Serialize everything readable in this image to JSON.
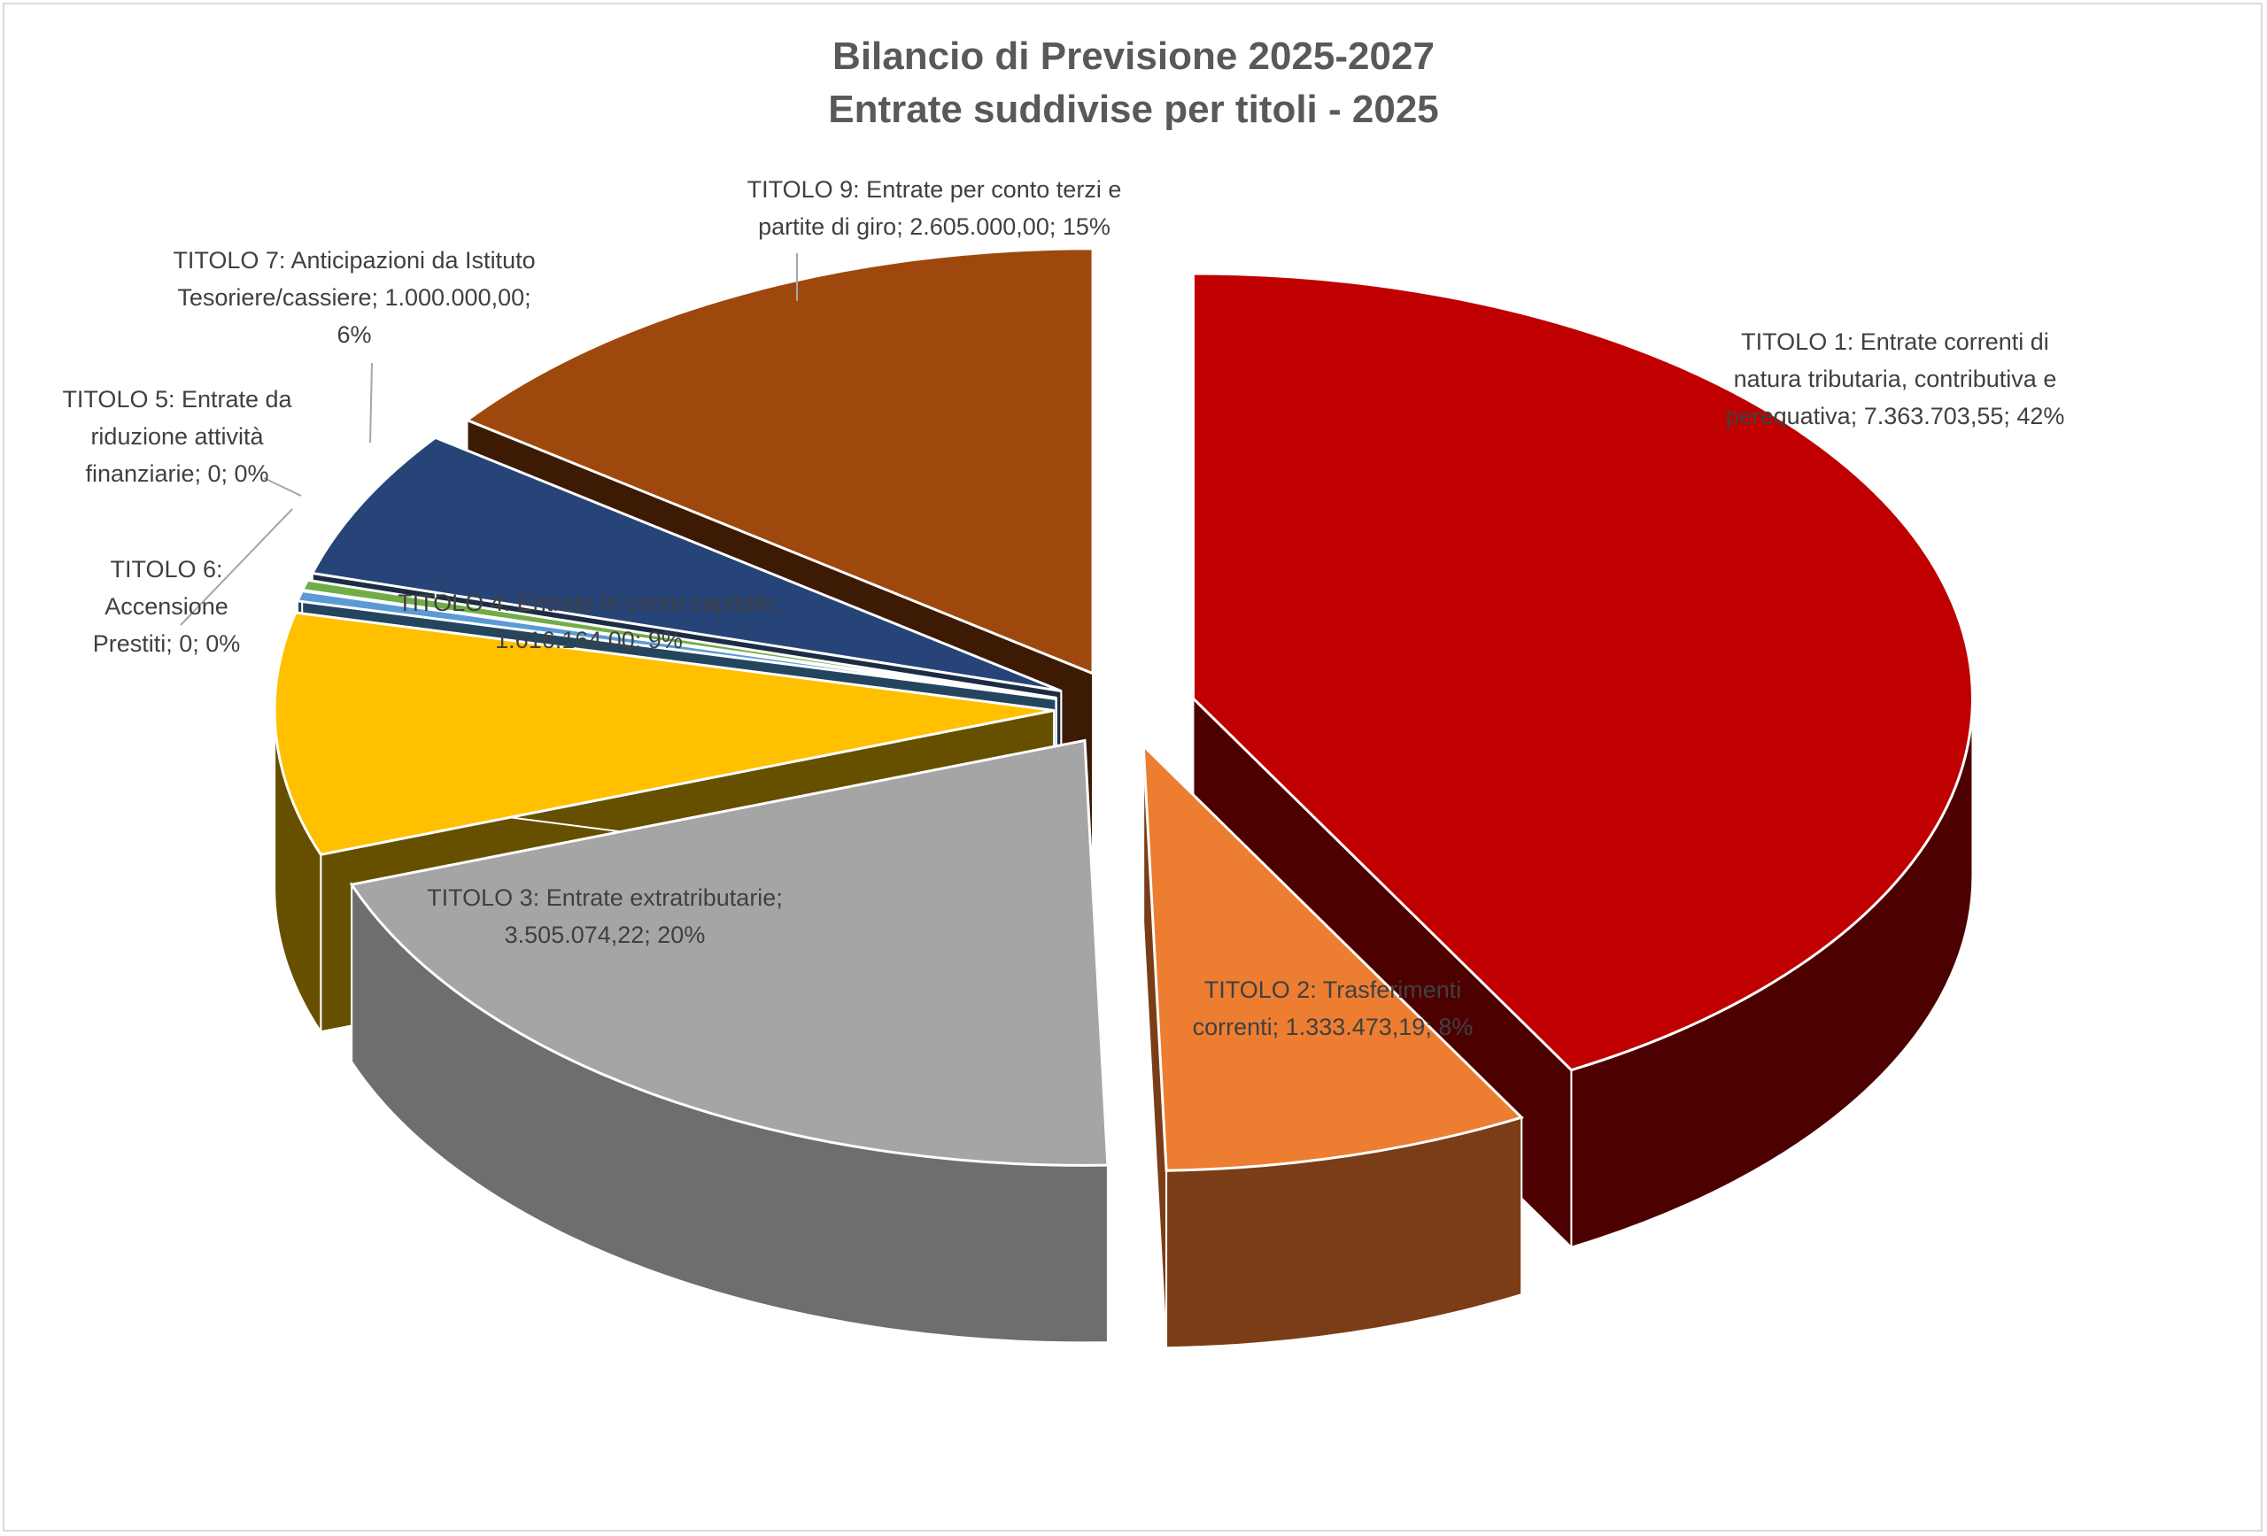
{
  "chart_data": {
    "type": "pie",
    "title": "Bilancio di Previsione 2025-2027",
    "subtitle": "Entrate suddivise per titoli - 2025",
    "slices": [
      {
        "label_lines": [
          "TITOLO 1: Entrate correnti di",
          "natura tributaria, contributiva e",
          "perequativa; 7.363.703,55; 42%"
        ],
        "value": 7363703.55,
        "percent": 42,
        "color": "#c00000",
        "side_color": "#4d0000"
      },
      {
        "label_lines": [
          "TITOLO 2: Trasferimenti",
          "correnti; 1.333.473,19; 8%"
        ],
        "value": 1333473.19,
        "percent": 8,
        "color": "#ed7d31",
        "side_color": "#7a3d17"
      },
      {
        "label_lines": [
          "TITOLO 3: Entrate extratributarie;",
          "3.505.074,22; 20%"
        ],
        "value": 3505074.22,
        "percent": 20,
        "color": "#a5a5a5",
        "side_color": "#6e6e6e"
      },
      {
        "label_lines": [
          "TITOLO 4: Entrate in conto capitale;",
          "1.616.164,00; 9%"
        ],
        "value": 1616164.0,
        "percent": 9,
        "color": "#ffc000",
        "side_color": "#665000"
      },
      {
        "label_lines": [
          "TITOLO 5: Entrate da",
          "riduzione attività",
          "finanziarie; 0; 0%"
        ],
        "value": 0,
        "percent": 0,
        "color": "#5b9bd5",
        "side_color": "#24455e"
      },
      {
        "label_lines": [
          "TITOLO 6:",
          "Accensione",
          "Prestiti; 0; 0%"
        ],
        "value": 0,
        "percent": 0,
        "color": "#70ad47",
        "side_color": "#2f5420"
      },
      {
        "label_lines": [
          "TITOLO 7: Anticipazioni da Istituto",
          "Tesoriere/cassiere;  1.000.000,00;",
          "6%"
        ],
        "value": 1000000.0,
        "percent": 6,
        "color": "#264478",
        "side_color": "#1c2c44"
      },
      {
        "label_lines": [
          "TITOLO 9: Entrate per conto terzi e",
          "partite di giro; 2.605.000,00; 15%"
        ],
        "value": 2605000.0,
        "percent": 15,
        "color": "#9e480e",
        "side_color": "#3d1a04"
      }
    ],
    "legend": "none",
    "exploded": true,
    "three_d": true
  }
}
